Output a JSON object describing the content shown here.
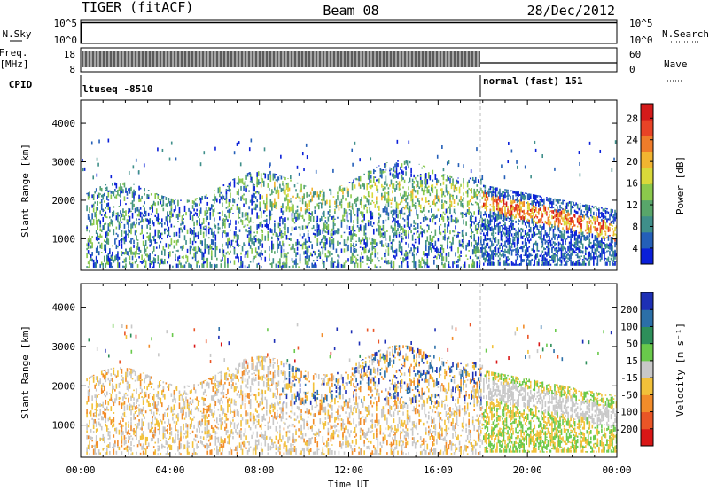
{
  "header": {
    "title": "TIGER (fitACF)",
    "beam": "Beam 08",
    "date": "28/Dec/2012"
  },
  "left_labels": {
    "nsky": "N.Sky",
    "nsky_ticks": [
      "10^5",
      "10^0"
    ],
    "freq": "Freq.",
    "freq_unit": "[MHz]",
    "freq_ticks": [
      "18",
      "8"
    ],
    "cpid": "CPID"
  },
  "right_labels": {
    "nsearch": "N.Search",
    "nsearch_ticks": [
      "10^5",
      "10^0"
    ],
    "nave": "Nave",
    "nave_ticks": [
      "60",
      "0"
    ]
  },
  "cpid_entries": [
    {
      "text": "ltuseq -8510",
      "start_hour": 0
    },
    {
      "text": "normal (fast) 151",
      "start_hour": 18
    }
  ],
  "chart_data": [
    {
      "type": "heatmap",
      "panel": "power",
      "ylabel": "Slant Range [km]",
      "yticks": [
        1000,
        2000,
        3000,
        4000
      ],
      "ylim": [
        180,
        4600
      ],
      "xlim": [
        0,
        24
      ],
      "colorbar_label": "Power [dB]",
      "colorbar_ticks": [
        "4",
        "8",
        "12",
        "16",
        "20",
        "24",
        "28"
      ],
      "colorbar_colors": [
        "#0a1fd9",
        "#245fb8",
        "#3f8f8a",
        "#58a66a",
        "#8bc94c",
        "#d9d93a",
        "#f2b531",
        "#ef7c2a",
        "#e84326",
        "#d41a1a"
      ],
      "grid": false
    },
    {
      "type": "heatmap",
      "panel": "velocity",
      "ylabel": "Slant Range [km]",
      "yticks": [
        1000,
        2000,
        3000,
        4000
      ],
      "ylim": [
        180,
        4600
      ],
      "xlim": [
        0,
        24
      ],
      "xlabel": "Time UT",
      "xticks": [
        "00:00",
        "04:00",
        "08:00",
        "12:00",
        "16:00",
        "20:00",
        "00:00"
      ],
      "colorbar_label": "Velocity [m s⁻¹]",
      "colorbar_ticks": [
        "200",
        "100",
        "50",
        "15",
        "-15",
        "-50",
        "-100",
        "-200"
      ],
      "colorbar_colors": [
        "#1d2fb5",
        "#2b6fa8",
        "#2d8f5a",
        "#69c94b",
        "#c8c8c8",
        "#f2c13a",
        "#f28c2a",
        "#ea5526",
        "#d91616"
      ],
      "grid": false
    }
  ]
}
